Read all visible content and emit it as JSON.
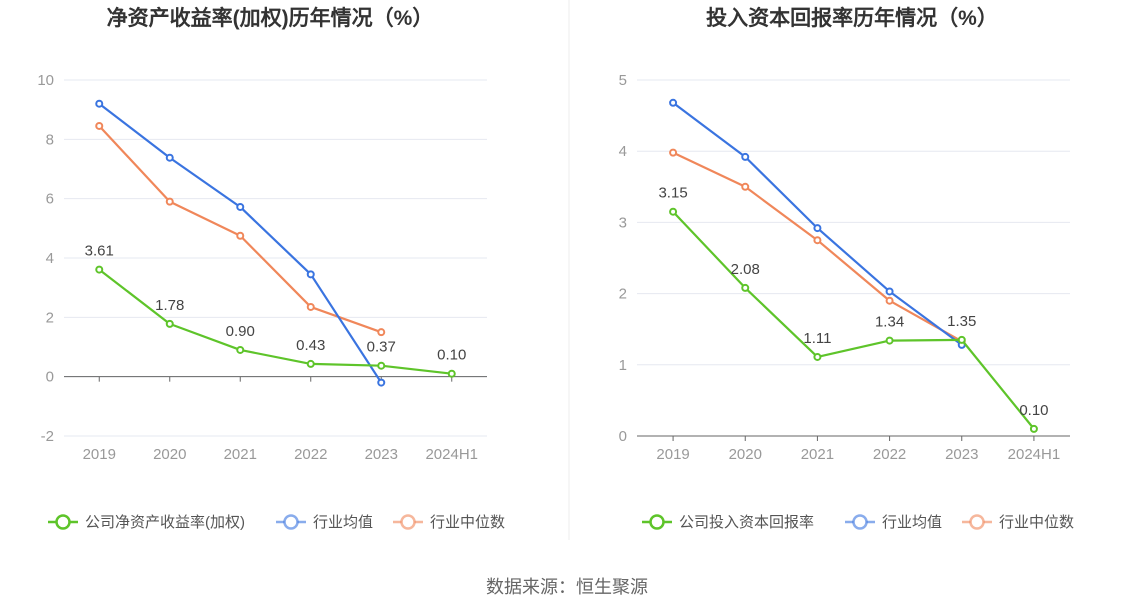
{
  "source": "数据来源：恒生聚源",
  "colors": {
    "company": "#5ec42a",
    "industry_avg": "#3a74e0",
    "industry_median": "#f0875a"
  },
  "chart_data": [
    {
      "type": "line",
      "title": "净资产收益率(加权)历年情况（%）",
      "categories": [
        "2019",
        "2020",
        "2021",
        "2022",
        "2023",
        "2024H1"
      ],
      "ylim": [
        -2,
        10
      ],
      "yticks": [
        "10",
        "8",
        "6",
        "4",
        "2",
        "0",
        "-2"
      ],
      "ytick_values": [
        10,
        8,
        6,
        4,
        2,
        0,
        -2
      ],
      "grid": true,
      "legend_position": "bottom",
      "series": [
        {
          "name": "公司净资产收益率(加权)",
          "color_key": "company",
          "values": [
            3.61,
            1.78,
            0.9,
            0.43,
            0.37,
            0.1
          ],
          "labels": [
            "3.61",
            "1.78",
            "0.90",
            "0.43",
            "0.37",
            "0.10"
          ]
        },
        {
          "name": "行业均值",
          "color_key": "industry_avg",
          "values": [
            9.2,
            7.38,
            5.72,
            3.45,
            -0.2,
            null
          ]
        },
        {
          "name": "行业中位数",
          "color_key": "industry_median",
          "values": [
            8.45,
            5.9,
            4.75,
            2.35,
            1.5,
            null
          ]
        }
      ]
    },
    {
      "type": "line",
      "title": "投入资本回报率历年情况（%）",
      "categories": [
        "2019",
        "2020",
        "2021",
        "2022",
        "2023",
        "2024H1"
      ],
      "ylim": [
        0,
        5
      ],
      "yticks": [
        "5",
        "4",
        "3",
        "2",
        "1",
        "0"
      ],
      "ytick_values": [
        5,
        4,
        3,
        2,
        1,
        0
      ],
      "grid": true,
      "legend_position": "bottom",
      "series": [
        {
          "name": "公司投入资本回报率",
          "color_key": "company",
          "values": [
            3.15,
            2.08,
            1.11,
            1.34,
            1.35,
            0.1
          ],
          "labels": [
            "3.15",
            "2.08",
            "1.11",
            "1.34",
            "1.35",
            "0.10"
          ]
        },
        {
          "name": "行业均值",
          "color_key": "industry_avg",
          "values": [
            4.68,
            3.92,
            2.92,
            2.03,
            1.28,
            null
          ]
        },
        {
          "name": "行业中位数",
          "color_key": "industry_median",
          "values": [
            3.98,
            3.5,
            2.75,
            1.9,
            1.33,
            null
          ]
        }
      ]
    }
  ]
}
